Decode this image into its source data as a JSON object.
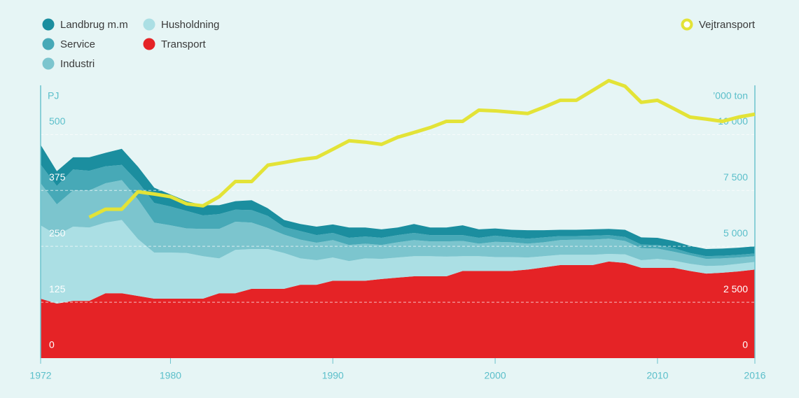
{
  "chart_data": {
    "type": "stacked_area_line",
    "x": [
      1972,
      1973,
      1974,
      1975,
      1976,
      1977,
      1978,
      1979,
      1980,
      1981,
      1982,
      1983,
      1984,
      1985,
      1986,
      1987,
      1988,
      1989,
      1990,
      1991,
      1992,
      1993,
      1994,
      1995,
      1996,
      1997,
      1998,
      1999,
      2000,
      2001,
      2002,
      2003,
      2004,
      2005,
      2006,
      2007,
      2008,
      2009,
      2010,
      2011,
      2012,
      2013,
      2014,
      2015,
      2016
    ],
    "xlim": [
      1972,
      2016
    ],
    "xticks": [
      1972,
      1980,
      1990,
      2000,
      2010,
      2016
    ],
    "ylim": [
      0,
      610
    ],
    "yticks": [
      0,
      125,
      250,
      375,
      500
    ],
    "ylabel": "PJ",
    "y2lim": [
      0,
      12200
    ],
    "y2ticks": [
      {
        "value": 0,
        "label": "0"
      },
      {
        "value": 2500,
        "label": "2 500"
      },
      {
        "value": 5000,
        "label": "5 000"
      },
      {
        "value": 7500,
        "label": "7 500"
      },
      {
        "value": 10000,
        "label": "10 000"
      }
    ],
    "y2label": "’000 ton",
    "grid": true,
    "legend": "top",
    "series": [
      {
        "name": "Landbrug m.m",
        "color": "#1b8e9f",
        "values": [
          44,
          33,
          27,
          30,
          30,
          36,
          34,
          34,
          27,
          22,
          23,
          20,
          19,
          22,
          17,
          16,
          16,
          19,
          19,
          23,
          20,
          19,
          17,
          20,
          17,
          17,
          22,
          19,
          16,
          17,
          19,
          16,
          14,
          14,
          14,
          14,
          16,
          16,
          16,
          16,
          16,
          16,
          16,
          16,
          16
        ]
      },
      {
        "name": "Service",
        "color": "#47a9b7",
        "values": [
          42,
          41,
          47,
          44,
          38,
          34,
          39,
          44,
          42,
          39,
          30,
          33,
          27,
          28,
          27,
          17,
          19,
          17,
          16,
          16,
          16,
          16,
          16,
          16,
          14,
          14,
          13,
          13,
          14,
          11,
          11,
          11,
          9,
          8,
          9,
          8,
          9,
          8,
          8,
          8,
          5,
          6,
          6,
          6,
          6
        ]
      },
      {
        "name": "Industri",
        "color": "#7cc5ce",
        "values": [
          94,
          69,
          81,
          83,
          88,
          89,
          89,
          67,
          61,
          55,
          61,
          66,
          63,
          59,
          47,
          41,
          42,
          39,
          39,
          36,
          33,
          31,
          34,
          36,
          33,
          34,
          34,
          28,
          34,
          33,
          31,
          31,
          33,
          34,
          34,
          34,
          30,
          27,
          23,
          20,
          19,
          16,
          16,
          14,
          13
        ]
      },
      {
        "name": "Husholdning",
        "color": "#abdfe4",
        "values": [
          164,
          153,
          166,
          164,
          158,
          164,
          127,
          103,
          103,
          102,
          95,
          78,
          97,
          89,
          89,
          80,
          59,
          55,
          52,
          44,
          50,
          45,
          45,
          45,
          45,
          44,
          33,
          33,
          31,
          31,
          27,
          25,
          23,
          23,
          23,
          17,
          19,
          17,
          20,
          16,
          16,
          17,
          16,
          17,
          17
        ]
      },
      {
        "name": "Transport",
        "color": "#e52326",
        "values": [
          133,
          122,
          128,
          128,
          145,
          145,
          139,
          133,
          133,
          133,
          133,
          145,
          145,
          155,
          155,
          155,
          164,
          164,
          173,
          173,
          173,
          177,
          180,
          183,
          183,
          183,
          195,
          195,
          195,
          195,
          198,
          203,
          208,
          208,
          208,
          216,
          213,
          202,
          202,
          202,
          195,
          189,
          191,
          194,
          198
        ]
      },
      {
        "name": "Vejtransport",
        "color": "#e3e337",
        "axis": "y2",
        "values": [
          null,
          null,
          null,
          6300,
          6660,
          6660,
          7440,
          7340,
          7220,
          6900,
          6810,
          7220,
          7900,
          7900,
          8630,
          8750,
          8880,
          8970,
          9340,
          9720,
          9660,
          9560,
          9880,
          10090,
          10310,
          10590,
          10590,
          11090,
          11060,
          11000,
          10940,
          11220,
          11530,
          11530,
          11970,
          12410,
          12160,
          11440,
          11530,
          11160,
          10780,
          10690,
          10590,
          10780,
          10910
        ]
      }
    ]
  }
}
